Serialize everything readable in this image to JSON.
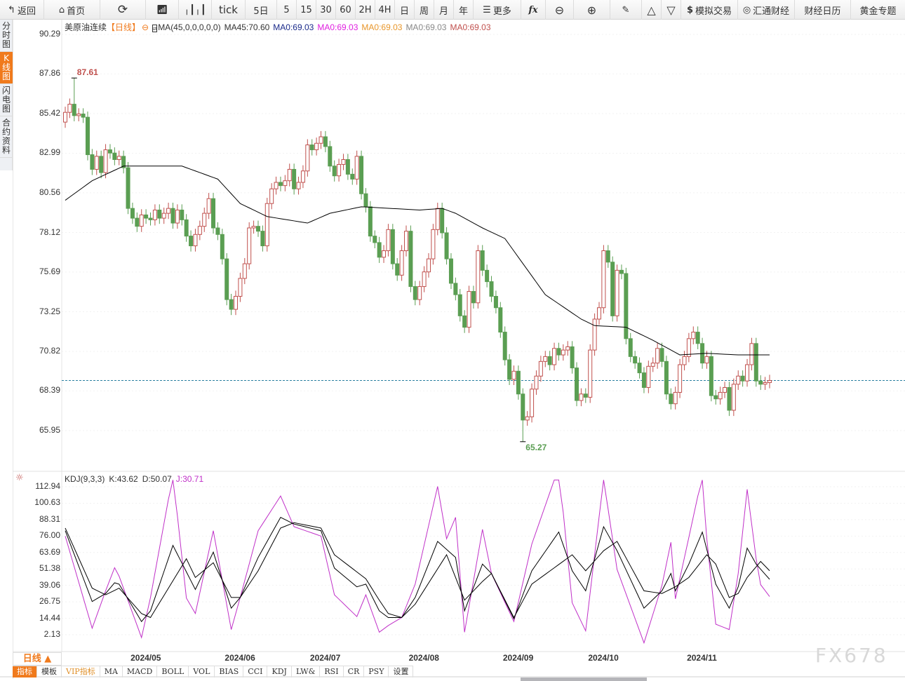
{
  "toolbar": {
    "back": "返回",
    "home": "首页",
    "tick": "tick",
    "five_day": "5日",
    "periods": [
      "5",
      "15",
      "30",
      "60",
      "2H",
      "4H",
      "日",
      "周",
      "月",
      "年"
    ],
    "more": "更多",
    "fx": "fx",
    "sim_trade": "模拟交易",
    "huitong": "汇通财经",
    "calendar": "财经日历",
    "gold": "黄金专题"
  },
  "left_tabs": [
    {
      "label": "分时图",
      "active": false
    },
    {
      "label": "K线图",
      "active": true
    },
    {
      "label": "闪电图",
      "active": false
    },
    {
      "label": "合约资料",
      "active": false
    }
  ],
  "legend": {
    "name": "美原油连续",
    "period": "【日线】",
    "ma_def": "MA(45,0,0,0,0,0)",
    "ma45": "MA45:70.60",
    "ma0_1": "MA0:69.03",
    "ma0_2": "MA0:69.03",
    "ma0_3": "MA0:69.03",
    "ma0_4": "MA0:69.03",
    "ma0_5": "MA0:69.03"
  },
  "colors": {
    "up": "#c0504d",
    "down": "#5a9e52",
    "ma45": "#000000",
    "ma0_1": "#1a2a8a",
    "ma0_2": "#e020e0",
    "ma0_3": "#e8962a",
    "ma0_4": "#888888",
    "ma0_5": "#c0504d",
    "accent": "#f07a1c",
    "k": "#000000",
    "d": "#000000",
    "j": "#c030c8"
  },
  "kdj_legend": {
    "def": "KDJ(9,3,3)",
    "k": "K:43.62",
    "d": "D:50.07",
    "j": "J:30.71"
  },
  "bottom": {
    "period": "日线 ▲",
    "watermark": "FX678"
  },
  "indicator_tabs": [
    {
      "label": "指标",
      "active": true
    },
    {
      "label": "模板"
    },
    {
      "label": "VIP指标",
      "vip": true
    },
    {
      "label": "MA"
    },
    {
      "label": "MACD"
    },
    {
      "label": "BOLL"
    },
    {
      "label": "VOL"
    },
    {
      "label": "BIAS"
    },
    {
      "label": "CCI"
    },
    {
      "label": "KDJ"
    },
    {
      "label": "LW&"
    },
    {
      "label": "RSI"
    },
    {
      "label": "CR"
    },
    {
      "label": "PSY"
    },
    {
      "label": "设置"
    }
  ],
  "chart_data": [
    {
      "type": "candlestick",
      "title": "美原油连续 日线",
      "y_ticks": [
        "90.29",
        "87.86",
        "85.42",
        "82.99",
        "80.56",
        "78.12",
        "75.69",
        "73.25",
        "70.82",
        "68.39",
        "65.95"
      ],
      "ylim": [
        65.95,
        90.29
      ],
      "x_ticks": [
        {
          "label": "2024/05",
          "index": 18
        },
        {
          "label": "2024/06",
          "index": 39
        },
        {
          "label": "2024/07",
          "index": 58
        },
        {
          "label": "2024/08",
          "index": 80
        },
        {
          "label": "2024/09",
          "index": 101
        },
        {
          "label": "2024/10",
          "index": 120
        },
        {
          "label": "2024/11",
          "index": 142
        }
      ],
      "close": [
        85.5,
        86.0,
        85.3,
        85.4,
        85.2,
        82.9,
        82.0,
        82.8,
        81.8,
        83.2,
        83.0,
        82.6,
        82.8,
        82.1,
        79.6,
        79.0,
        78.5,
        79.2,
        79.0,
        78.9,
        79.5,
        79.0,
        79.3,
        79.6,
        78.7,
        79.5,
        78.9,
        77.9,
        77.3,
        78.0,
        78.5,
        79.3,
        80.2,
        78.4,
        78.0,
        76.5,
        74.0,
        73.4,
        74.2,
        75.3,
        76.2,
        78.4,
        78.5,
        78.2,
        77.3,
        79.9,
        80.8,
        81.2,
        81.0,
        81.3,
        82.0,
        80.8,
        81.2,
        81.9,
        83.5,
        83.2,
        83.6,
        84.0,
        83.4,
        82.2,
        81.6,
        82.3,
        82.6,
        81.7,
        81.4,
        82.8,
        80.5,
        79.7,
        77.9,
        77.5,
        76.6,
        77.0,
        78.3,
        76.2,
        75.5,
        77.0,
        78.2,
        74.8,
        74.0,
        74.8,
        75.7,
        76.5,
        78.3,
        79.6,
        78.1,
        76.5,
        75.0,
        74.3,
        73.0,
        72.3,
        74.5,
        73.8,
        77.0,
        75.8,
        75.1,
        74.2,
        73.5,
        72.0,
        70.3,
        69.1,
        69.6,
        68.2,
        66.6,
        66.8,
        68.5,
        69.3,
        70.2,
        70.5,
        70.0,
        71.0,
        70.6,
        70.9,
        71.1,
        69.8,
        67.8,
        68.2,
        68.0,
        70.9,
        72.8,
        73.5,
        77.0,
        76.3,
        73.0,
        75.8,
        75.6,
        71.6,
        70.5,
        70.1,
        69.5,
        68.6,
        69.9,
        70.1,
        71.0,
        70.2,
        68.2,
        67.6,
        68.3,
        70.0,
        70.5,
        71.6,
        72.0,
        71.3,
        70.1,
        70.5,
        68.1,
        67.9,
        68.3,
        68.6,
        67.2,
        68.8,
        69.3,
        69.0,
        70.0,
        71.3,
        69.0,
        68.8,
        68.9,
        69.03
      ],
      "max_high": {
        "value": 87.61,
        "label": "87.61",
        "index": 2
      },
      "min_low": {
        "value": 65.27,
        "label": "65.27",
        "index": 102
      },
      "last_price_line": 69.03,
      "ma45": [
        [
          0,
          80.1
        ],
        [
          6,
          81.3
        ],
        [
          13,
          82.2
        ],
        [
          26,
          82.2
        ],
        [
          34,
          81.4
        ],
        [
          39,
          79.9
        ],
        [
          45,
          79.1
        ],
        [
          54,
          78.7
        ],
        [
          59,
          79.3
        ],
        [
          66,
          79.7
        ],
        [
          79,
          79.5
        ],
        [
          84,
          79.6
        ],
        [
          87,
          79.3
        ],
        [
          93,
          78.4
        ],
        [
          98,
          77.75
        ],
        [
          107,
          74.3
        ],
        [
          115,
          72.8
        ],
        [
          118,
          72.4
        ],
        [
          125,
          72.3
        ],
        [
          131,
          71.5
        ],
        [
          137,
          70.6
        ],
        [
          143,
          70.7
        ],
        [
          150,
          70.6
        ],
        [
          157,
          70.6
        ]
      ]
    },
    {
      "type": "line",
      "title": "KDJ(9,3,3)",
      "y_ticks": [
        "112.94",
        "100.63",
        "88.31",
        "76.00",
        "63.69",
        "51.38",
        "39.06",
        "26.75",
        "14.44",
        "2.13"
      ],
      "ylim": [
        2.13,
        112.94
      ],
      "series": [
        {
          "name": "K",
          "points": [
            [
              0,
              80
            ],
            [
              6,
              27
            ],
            [
              9,
              33
            ],
            [
              11,
              41
            ],
            [
              12,
              40
            ],
            [
              17,
              12
            ],
            [
              19,
              20
            ],
            [
              24,
              69
            ],
            [
              29,
              36
            ],
            [
              33,
              64
            ],
            [
              37,
              22
            ],
            [
              39,
              30
            ],
            [
              43,
              60
            ],
            [
              48,
              90
            ],
            [
              51,
              85
            ],
            [
              57,
              80
            ],
            [
              60,
              52
            ],
            [
              65,
              38
            ],
            [
              67,
              40
            ],
            [
              70,
              20
            ],
            [
              72,
              15
            ],
            [
              75,
              15
            ],
            [
              78,
              30
            ],
            [
              83,
              72
            ],
            [
              87,
              60
            ],
            [
              89,
              20
            ],
            [
              93,
              55
            ],
            [
              95,
              48
            ],
            [
              100,
              14
            ],
            [
              104,
              50
            ],
            [
              110,
              79
            ],
            [
              113,
              50
            ],
            [
              116,
              35
            ],
            [
              120,
              83
            ],
            [
              123,
              65
            ],
            [
              129,
              22
            ],
            [
              133,
              35
            ],
            [
              135,
              48
            ],
            [
              136,
              35
            ],
            [
              139,
              55
            ],
            [
              142,
              79
            ],
            [
              145,
              40
            ],
            [
              148,
              22
            ],
            [
              150,
              38
            ],
            [
              152,
              67
            ],
            [
              154,
              55
            ],
            [
              157,
              43.62
            ]
          ]
        },
        {
          "name": "D",
          "points": [
            [
              0,
              82
            ],
            [
              6,
              37
            ],
            [
              9,
              32
            ],
            [
              12,
              37
            ],
            [
              17,
              18
            ],
            [
              19,
              15
            ],
            [
              27,
              59
            ],
            [
              29,
              45
            ],
            [
              33,
              56
            ],
            [
              37,
              30
            ],
            [
              39,
              30
            ],
            [
              43,
              50
            ],
            [
              48,
              82
            ],
            [
              51,
              86
            ],
            [
              57,
              82
            ],
            [
              60,
              62
            ],
            [
              67,
              44
            ],
            [
              70,
              28
            ],
            [
              72,
              18
            ],
            [
              75,
              15
            ],
            [
              78,
              25
            ],
            [
              85,
              62
            ],
            [
              89,
              28
            ],
            [
              93,
              42
            ],
            [
              95,
              48
            ],
            [
              100,
              15
            ],
            [
              104,
              40
            ],
            [
              113,
              62
            ],
            [
              116,
              50
            ],
            [
              120,
              65
            ],
            [
              123,
              72
            ],
            [
              129,
              35
            ],
            [
              133,
              33
            ],
            [
              136,
              38
            ],
            [
              139,
              45
            ],
            [
              143,
              62
            ],
            [
              145,
              55
            ],
            [
              148,
              30
            ],
            [
              150,
              33
            ],
            [
              152,
              45
            ],
            [
              155,
              57
            ],
            [
              157,
              50.07
            ]
          ]
        },
        {
          "name": "J",
          "derived": "3K-2D",
          "last": 30.71
        }
      ]
    }
  ]
}
